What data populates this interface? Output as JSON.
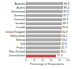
{
  "chart_data": {
    "type": "bar",
    "orientation": "horizontal",
    "x_label": "Percentage of Respondents",
    "categories": [
      "Australia",
      "Austria",
      "Switzerland",
      "Germany",
      "Denmark",
      "Sweden",
      "Canada",
      "United Kingdom",
      "Netherlands",
      "Norway",
      "Italy",
      "France",
      "New Zealand",
      "United States"
    ],
    "values": [
      88.8,
      88.4,
      87.6,
      87.2,
      86.5,
      86.1,
      85.4,
      84.9,
      84.2,
      83.5,
      82.6,
      81.9,
      80.5,
      71.3
    ],
    "colors": [
      "#a6a6a6",
      "#a6a6a6",
      "#a6a6a6",
      "#a6a6a6",
      "#a6a6a6",
      "#a6a6a6",
      "#a6a6a6",
      "#a6a6a6",
      "#a6a6a6",
      "#a6a6a6",
      "#a6a6a6",
      "#a6a6a6",
      "#a6a6a6",
      "#c0504d"
    ],
    "xlim": [
      0,
      100
    ],
    "xticks": [
      0,
      20,
      40,
      60,
      80,
      100
    ],
    "grid": false,
    "data_labels": true
  }
}
